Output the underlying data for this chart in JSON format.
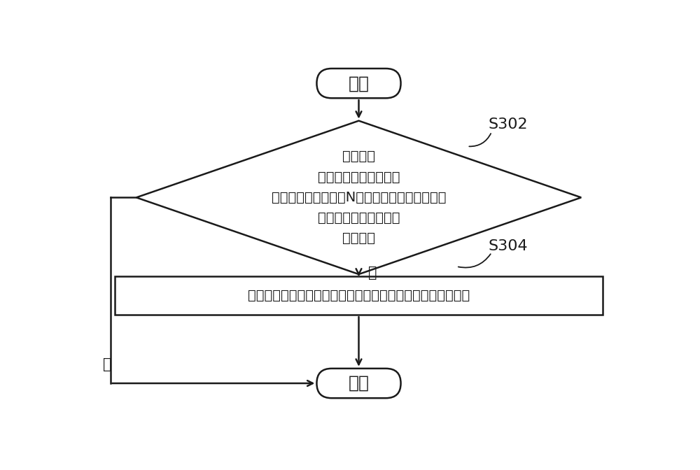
{
  "bg_color": "#ffffff",
  "line_color": "#1a1a1a",
  "text_color": "#1a1a1a",
  "start_label": "开始",
  "end_label": "结束",
  "diamond_lines": [
    "根据各组",
    "天线的通信参数对各组",
    "天线的性能进行包括N个判决阶段的条件进阶判",
    "决以确定是否需要进行",
    "天线切换"
  ],
  "rect_text": "重新确定各组天线与主收发通路、辅接收通路之间的连通关系",
  "yes_label": "是",
  "no_label": "否",
  "s302_label": "S302",
  "s304_label": "S304",
  "font_size_main": 18,
  "font_size_diamond": 14,
  "font_size_rect": 14,
  "font_size_label": 15,
  "font_size_step": 16
}
